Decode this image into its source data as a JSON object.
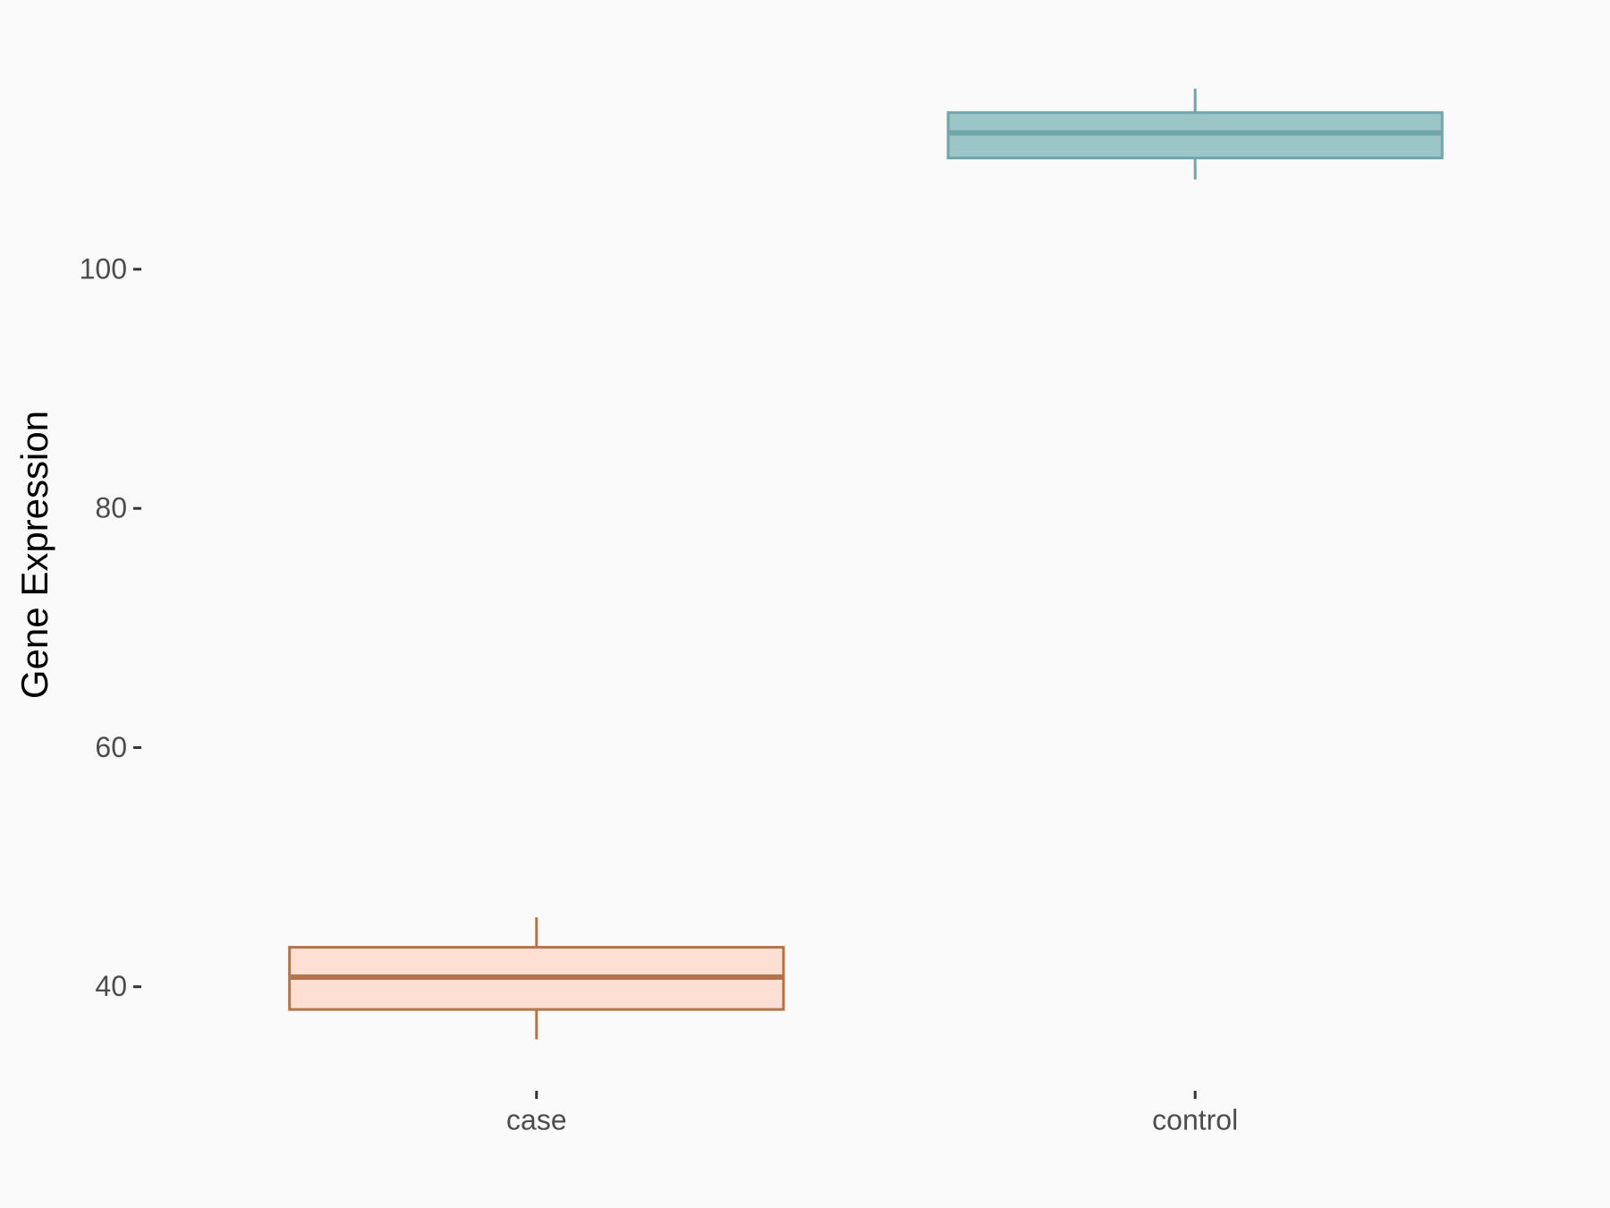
{
  "chart_data": {
    "type": "box",
    "y_label": "Gene Expression",
    "categories": [
      "case",
      "control"
    ],
    "boxes": [
      {
        "min": 35.6,
        "q1": 38.1,
        "median": 40.8,
        "q3": 43.3,
        "max": 45.8,
        "color": "#b5734a",
        "fill": "#fddfd3"
      },
      {
        "min": 107.5,
        "q1": 109.3,
        "median": 111.4,
        "q3": 113.1,
        "max": 115.1,
        "color": "#6fa6aa",
        "fill": "#9cc5c7"
      }
    ],
    "ylim": [
      31.3,
      117.8
    ],
    "yticks": [
      40,
      60,
      80,
      100
    ],
    "grid": false
  }
}
